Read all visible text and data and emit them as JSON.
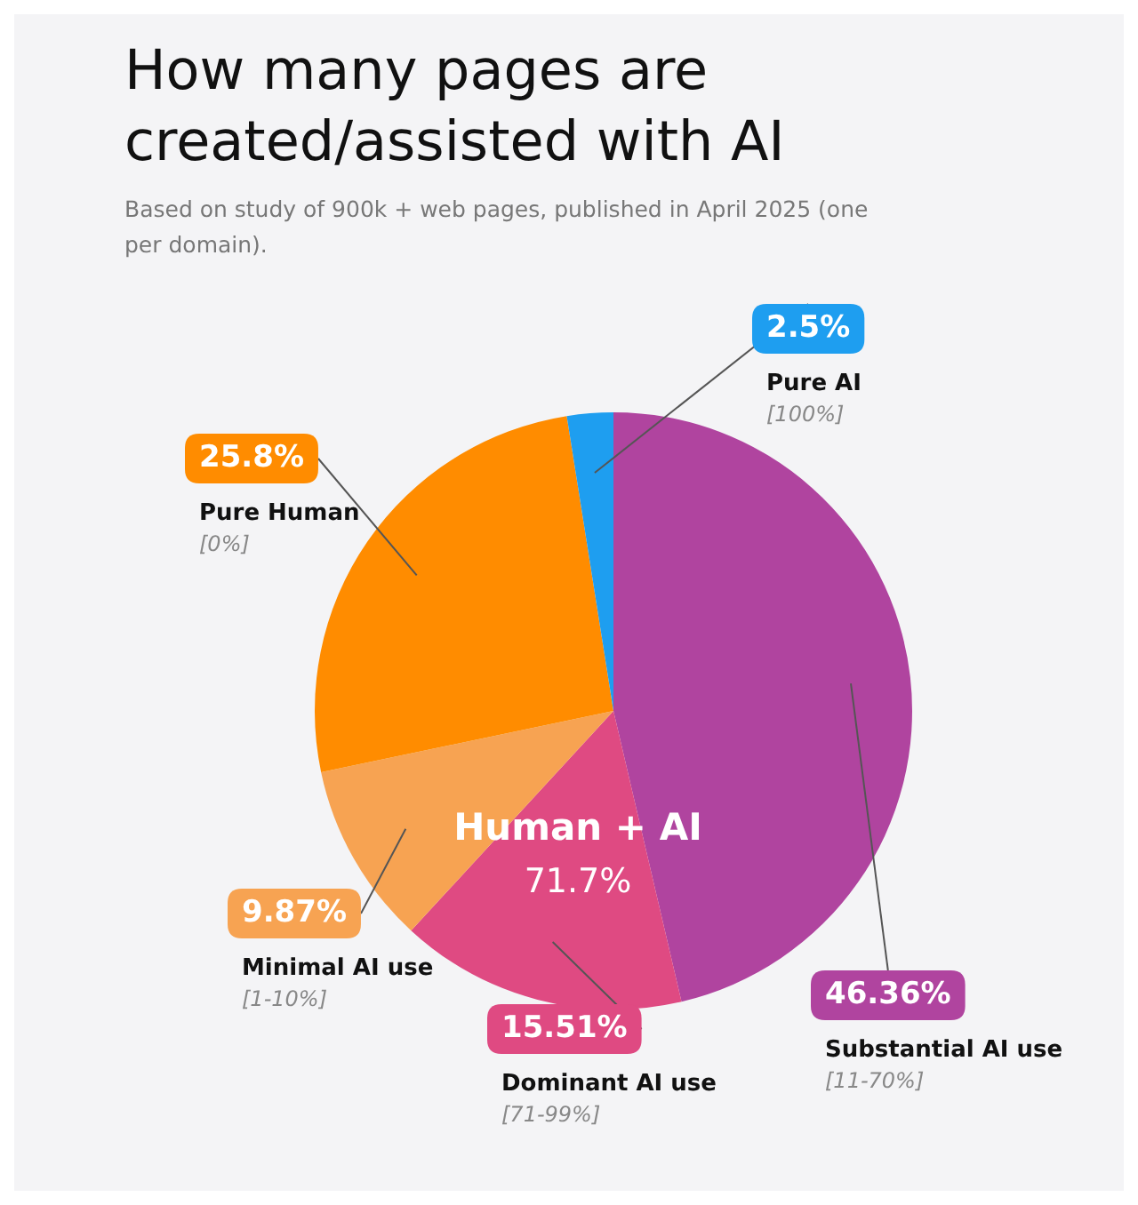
{
  "chart_data": {
    "type": "pie",
    "title": "How many pages are created/assisted with AI",
    "subtitle": "Based on study of 900k + web pages, published in April 2025 (one per domain).",
    "categories": [
      "Substantial AI use",
      "Dominant AI use",
      "Minimal AI use",
      "Pure Human",
      "Pure AI"
    ],
    "values": [
      46.36,
      15.51,
      9.87,
      25.8,
      2.5
    ],
    "colors": [
      "#b0449f",
      "#df4a82",
      "#f7a352",
      "#ff8c00",
      "#1e9ef0"
    ],
    "value_labels": [
      "46.36%",
      "15.51%",
      "9.87%",
      "25.8%",
      "2.5%"
    ],
    "annotations": [
      "[11-70%]",
      "[71-99%]",
      "[1-10%]",
      "[0%]",
      "[100%]",
      "Human + AI",
      "71.7%"
    ]
  }
}
